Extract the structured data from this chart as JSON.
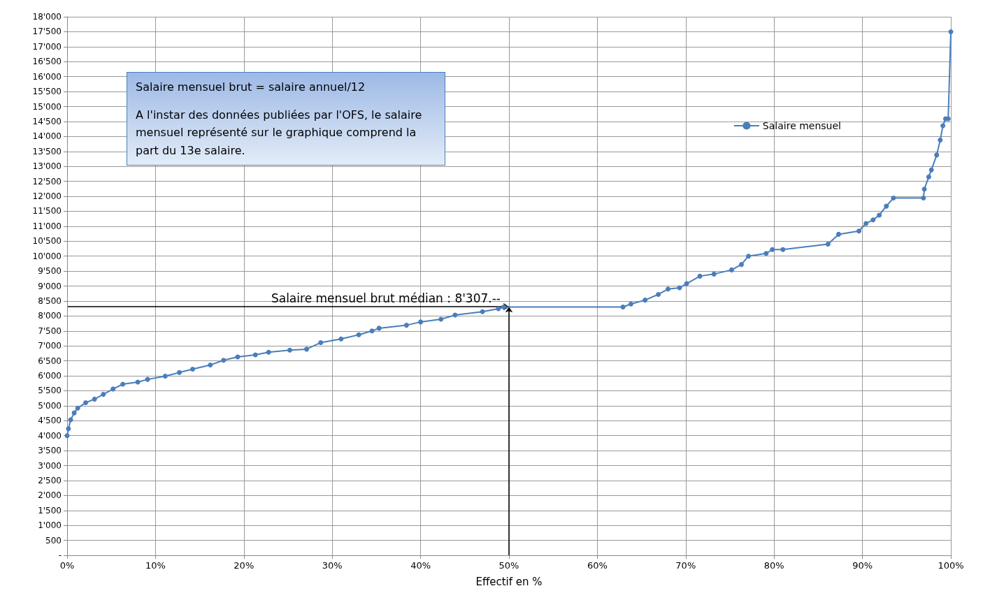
{
  "chart_data": {
    "type": "line",
    "xlabel": "Effectif en %",
    "annotations": [
      "Salaire mensuel brut = salaire annuel/12",
      "A l'instar des données publiées par l'OFS,  le salaire mensuel représenté sur le graphique comprend la part du 13e salaire.",
      {
        "text": "Salaire mensuel brut médian : 8'307.--",
        "x": 50,
        "y": 8307
      }
    ],
    "x": [
      0,
      0.15,
      0.4,
      0.8,
      1.2,
      2.1,
      3.1,
      4.1,
      5.2,
      6.3,
      8,
      9.1,
      11.1,
      12.7,
      14.2,
      16.2,
      17.7,
      19.3,
      21.3,
      22.8,
      25.2,
      27.1,
      28.7,
      31,
      33,
      34.5,
      35.3,
      38.4,
      40,
      42.3,
      43.9,
      47,
      48.8,
      49.4,
      62.9,
      63.8,
      65.4,
      66.9,
      68,
      69.3,
      70.1,
      71.6,
      73.2,
      75.2,
      76.3,
      77.1,
      79.1,
      79.8,
      81,
      86.1,
      87.3,
      89.6,
      90.4,
      91.2,
      91.9,
      92.7,
      93.5,
      96.9,
      97,
      97.5,
      97.8,
      98.4,
      98.8,
      99.1,
      99.4,
      99.7,
      100
    ],
    "series": [
      {
        "name": "Salaire mensuel",
        "color": "#4a7ebb",
        "values": [
          4000,
          4230,
          4530,
          4760,
          4920,
          5100,
          5220,
          5380,
          5560,
          5720,
          5790,
          5880,
          5990,
          6110,
          6220,
          6360,
          6520,
          6630,
          6700,
          6790,
          6860,
          6890,
          7110,
          7230,
          7370,
          7500,
          7590,
          7690,
          7800,
          7890,
          8030,
          8140,
          8240,
          8300,
          8300,
          8400,
          8530,
          8720,
          8900,
          8940,
          9080,
          9330,
          9400,
          9540,
          9720,
          10000,
          10090,
          10220,
          10220,
          10400,
          10730,
          10840,
          11090,
          11210,
          11370,
          11670,
          11940,
          11940,
          12240,
          12650,
          12880,
          13380,
          13880,
          14360,
          14590,
          14590,
          17500
        ]
      }
    ],
    "xlim": [
      0,
      100
    ],
    "xticks": [
      {
        "value": 0,
        "label": "0%"
      },
      {
        "value": 10,
        "label": "10%"
      },
      {
        "value": 20,
        "label": "20%"
      },
      {
        "value": 30,
        "label": "30%"
      },
      {
        "value": 40,
        "label": "40%"
      },
      {
        "value": 50,
        "label": "50%"
      },
      {
        "value": 60,
        "label": "60%"
      },
      {
        "value": 70,
        "label": "70%"
      },
      {
        "value": 80,
        "label": "80%"
      },
      {
        "value": 90,
        "label": "90%"
      },
      {
        "value": 100,
        "label": "100%"
      }
    ],
    "ylim": [
      0,
      18000
    ],
    "yticks": [
      {
        "value": 0,
        "label": "-"
      },
      500,
      {
        "value": 1000,
        "label": "1'000"
      },
      {
        "value": 1500,
        "label": "1'500"
      },
      {
        "value": 2000,
        "label": "2'000"
      },
      {
        "value": 2500,
        "label": "2'500"
      },
      {
        "value": 3000,
        "label": "3'000"
      },
      {
        "value": 3500,
        "label": "3'500"
      },
      {
        "value": 4000,
        "label": "4'000"
      },
      {
        "value": 4500,
        "label": "4'500"
      },
      {
        "value": 5000,
        "label": "5'000"
      },
      {
        "value": 5500,
        "label": "5'500"
      },
      {
        "value": 6000,
        "label": "6'000"
      },
      {
        "value": 6500,
        "label": "6'500"
      },
      {
        "value": 7000,
        "label": "7'000"
      },
      {
        "value": 7500,
        "label": "7'500"
      },
      {
        "value": 8000,
        "label": "8'000"
      },
      {
        "value": 8500,
        "label": "8'500"
      },
      {
        "value": 9000,
        "label": "9'000"
      },
      {
        "value": 9500,
        "label": "9'500"
      },
      {
        "value": 10000,
        "label": "10'000"
      },
      {
        "value": 10500,
        "label": "10'500"
      },
      {
        "value": 11000,
        "label": "11'000"
      },
      {
        "value": 11500,
        "label": "11'500"
      },
      {
        "value": 12000,
        "label": "12'000"
      },
      {
        "value": 12500,
        "label": "12'500"
      },
      {
        "value": 13000,
        "label": "13'000"
      },
      {
        "value": 13500,
        "label": "13'500"
      },
      {
        "value": 14000,
        "label": "14'000"
      },
      {
        "value": 14500,
        "label": "14'500"
      },
      {
        "value": 15000,
        "label": "15'000"
      },
      {
        "value": 15500,
        "label": "15'500"
      },
      {
        "value": 16000,
        "label": "16'000"
      },
      {
        "value": 16500,
        "label": "16'500"
      },
      {
        "value": 17000,
        "label": "17'000"
      },
      {
        "value": 17500,
        "label": "17'500"
      },
      {
        "value": 18000,
        "label": "18'000"
      }
    ],
    "grid": true,
    "legend": "top right",
    "marker": "circle",
    "line_style": "solid"
  }
}
